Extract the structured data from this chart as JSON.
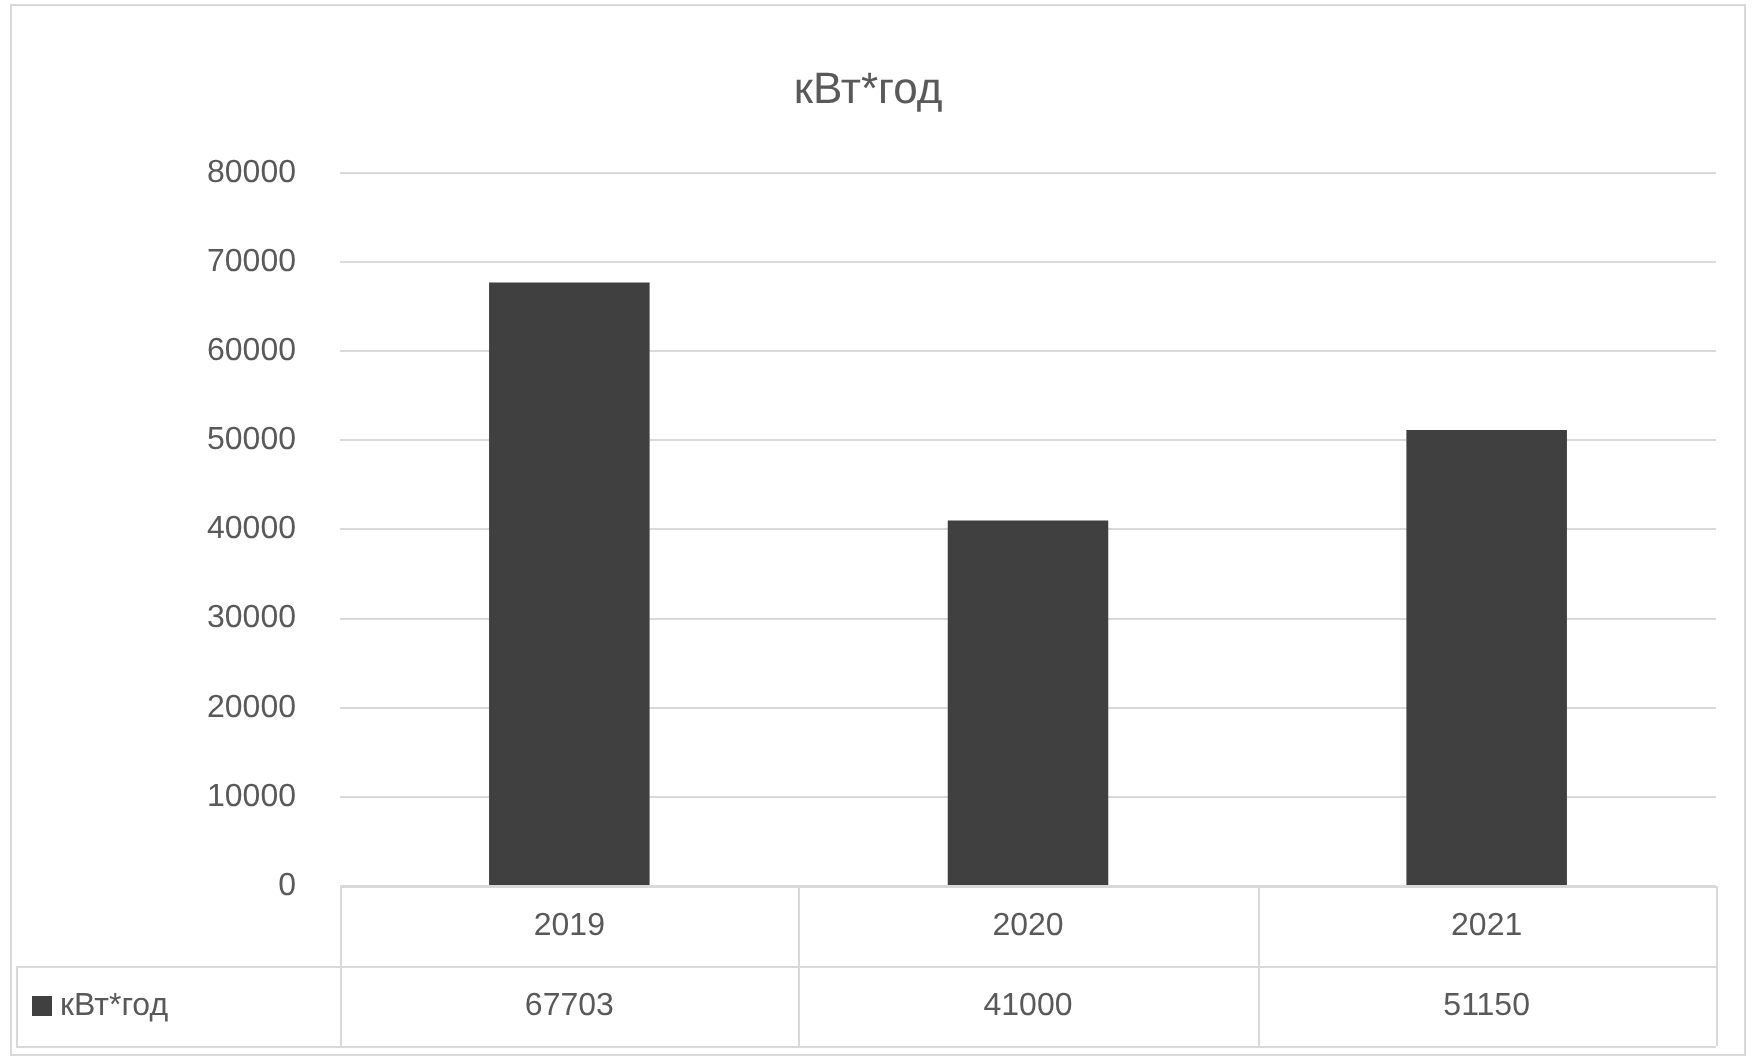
{
  "chart_data": {
    "type": "bar",
    "title": "кВт*год",
    "categories": [
      "2019",
      "2020",
      "2021"
    ],
    "series": [
      {
        "name": "кВт*год",
        "color": "#404040",
        "values": [
          67703,
          41000,
          51150
        ]
      }
    ],
    "ylim": [
      0,
      80000
    ],
    "yticks": [
      0,
      10000,
      20000,
      30000,
      40000,
      50000,
      60000,
      70000,
      80000
    ],
    "grid": "y",
    "legend": "bottom",
    "data_labels": true
  }
}
